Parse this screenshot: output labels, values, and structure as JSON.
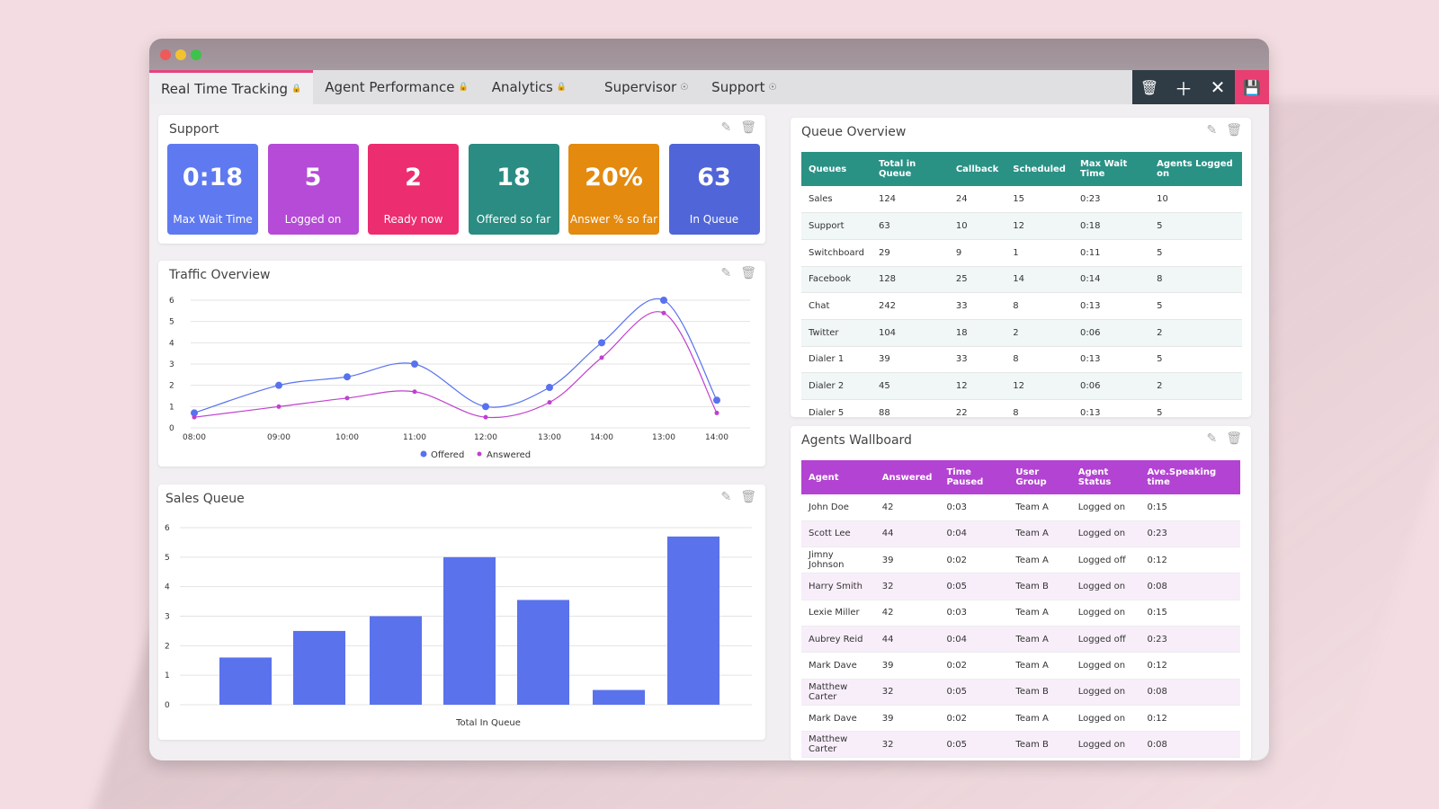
{
  "tabs": [
    {
      "label": "Real Time Tracking",
      "icon": "lock-icon",
      "active": true
    },
    {
      "label": "Agent Performance",
      "icon": "lock-icon"
    },
    {
      "label": "Analytics",
      "icon": "lock-icon"
    },
    {
      "label": "Supervisor",
      "icon": "globe-icon"
    },
    {
      "label": "Support",
      "icon": "globe-icon"
    }
  ],
  "support": {
    "title": "Support",
    "stats": [
      {
        "value": "0:18",
        "label": "Max Wait Time",
        "color": "#5f7af0"
      },
      {
        "value": "5",
        "label": "Logged on",
        "color": "#b54bd6"
      },
      {
        "value": "2",
        "label": "Ready now",
        "color": "#ec2d6f"
      },
      {
        "value": "18",
        "label": "Offered so far",
        "color": "#2a8c82"
      },
      {
        "value": "20%",
        "label": "Answer % so far",
        "color": "#e38a0f"
      },
      {
        "value": "63",
        "label": "In Queue",
        "color": "#5065d8"
      }
    ]
  },
  "traffic": {
    "title": "Traffic Overview",
    "chart_data": {
      "type": "line",
      "categories": [
        "08:00",
        "09:00",
        "10:00",
        "11:00",
        "12:00",
        "13:00",
        "14:00",
        "13:00",
        "14:00"
      ],
      "ylim": [
        0,
        6
      ],
      "yticks": [
        "0",
        "1",
        "2",
        "3",
        "4",
        "5",
        "6"
      ],
      "legend": "bottom",
      "series": [
        {
          "name": "Offered",
          "color": "#5872ee",
          "values": [
            0.7,
            2.0,
            2.4,
            3.0,
            1.0,
            1.9,
            4.0,
            6.0,
            1.3
          ]
        },
        {
          "name": "Answered",
          "color": "#c040cf",
          "values": [
            0.5,
            1.0,
            1.4,
            1.7,
            0.5,
            1.2,
            3.3,
            5.4,
            0.7
          ]
        }
      ]
    }
  },
  "sales": {
    "title": "Sales Queue",
    "chart_data": {
      "type": "bar",
      "categories": [
        "",
        "",
        "",
        "",
        "",
        "",
        ""
      ],
      "values": [
        1.6,
        2.5,
        3.0,
        5.0,
        3.55,
        0.5,
        5.7
      ],
      "ylim": [
        0,
        6
      ],
      "yticks": [
        "0",
        "1",
        "2",
        "3",
        "4",
        "5",
        "6"
      ],
      "xlabel": "Total In Queue",
      "color": "#5a72ec"
    }
  },
  "queue": {
    "title": "Queue Overview",
    "headers": [
      "Queues",
      "Total in Queue",
      "Callback",
      "Scheduled",
      "Max Wait Time",
      "Agents Logged on"
    ],
    "rows": [
      [
        "Sales",
        "124",
        "24",
        "15",
        "0:23",
        "10"
      ],
      [
        "Support",
        "63",
        "10",
        "12",
        "0:18",
        "5"
      ],
      [
        "Switchboard",
        "29",
        "9",
        "1",
        "0:11",
        "5"
      ],
      [
        "Facebook",
        "128",
        "25",
        "14",
        "0:14",
        "8"
      ],
      [
        "Chat",
        "242",
        "33",
        "8",
        "0:13",
        "5"
      ],
      [
        "Twitter",
        "104",
        "18",
        "2",
        "0:06",
        "2"
      ],
      [
        "Dialer 1",
        "39",
        "33",
        "8",
        "0:13",
        "5"
      ],
      [
        "Dialer 2",
        "45",
        "12",
        "12",
        "0:06",
        "2"
      ],
      [
        "Dialer 5",
        "88",
        "22",
        "8",
        "0:13",
        "5"
      ]
    ]
  },
  "agents": {
    "title": "Agents Wallboard",
    "headers": [
      "Agent",
      "Answered",
      "Time Paused",
      "User Group",
      "Agent Status",
      "Ave.Speaking time"
    ],
    "rows": [
      [
        "John Doe",
        "42",
        "0:03",
        "Team A",
        "Logged on",
        "0:15"
      ],
      [
        "Scott Lee",
        "44",
        "0:04",
        "Team A",
        "Logged on",
        "0:23"
      ],
      [
        "Jimny Johnson",
        "39",
        "0:02",
        "Team A",
        "Logged off",
        "0:12"
      ],
      [
        "Harry Smith",
        "32",
        "0:05",
        "Team B",
        "Logged on",
        "0:08"
      ],
      [
        "Lexie Miller",
        "42",
        "0:03",
        "Team A",
        "Logged on",
        "0:15"
      ],
      [
        "Aubrey Reid",
        "44",
        "0:04",
        "Team A",
        "Logged off",
        "0:23"
      ],
      [
        "Mark Dave",
        "39",
        "0:02",
        "Team A",
        "Logged on",
        "0:12"
      ],
      [
        "Matthew Carter",
        "32",
        "0:05",
        "Team B",
        "Logged on",
        "0:08"
      ],
      [
        "Mark Dave",
        "39",
        "0:02",
        "Team A",
        "Logged on",
        "0:12"
      ],
      [
        "Matthew Carter",
        "32",
        "0:05",
        "Team B",
        "Logged on",
        "0:08"
      ]
    ]
  },
  "icons": {
    "edit": "edit-icon",
    "delete": "trash-icon",
    "add": "plus-icon",
    "close": "close-icon",
    "save": "save-icon"
  }
}
